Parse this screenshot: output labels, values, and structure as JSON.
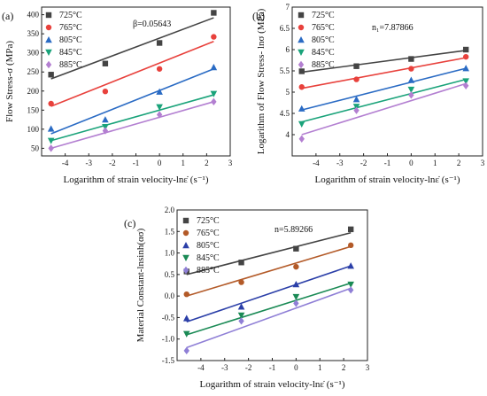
{
  "chart_data": [
    {
      "type": "scatter",
      "panel_label": "(a)",
      "xlabel": "Logarithm of strain velocity-lnε̇ (s⁻¹)",
      "ylabel": "Flow Stress-σ (MPa)",
      "annotation": "β=0.05643",
      "xlim": [
        -5,
        3
      ],
      "ylim": [
        30,
        420
      ],
      "xticks": [
        -4,
        -3,
        -2,
        -1,
        0,
        1,
        2,
        3
      ],
      "yticks": [
        50,
        100,
        150,
        200,
        250,
        300,
        350,
        400
      ],
      "legend_position": "top-left",
      "series": [
        {
          "name": "725°C",
          "color": "#444444",
          "marker": "square",
          "x": [
            -4.6,
            -2.3,
            0,
            2.3
          ],
          "y": [
            243,
            272,
            326,
            405
          ],
          "fit": [
            [
              -4.6,
              232
            ],
            [
              2.3,
              392
            ]
          ]
        },
        {
          "name": "765°C",
          "color": "#e8413c",
          "marker": "circle",
          "x": [
            -4.6,
            -2.3,
            0,
            2.3
          ],
          "y": [
            167,
            199,
            258,
            342
          ],
          "fit": [
            [
              -4.6,
              160
            ],
            [
              2.3,
              330
            ]
          ]
        },
        {
          "name": "805°C",
          "color": "#2a6bc4",
          "marker": "triangle-up",
          "x": [
            -4.6,
            -2.3,
            0,
            2.3
          ],
          "y": [
            101,
            125,
            198,
            262
          ],
          "fit": [
            [
              -4.6,
              88
            ],
            [
              2.3,
              258
            ]
          ]
        },
        {
          "name": "845°C",
          "color": "#1aa37a",
          "marker": "triangle-down",
          "x": [
            -4.6,
            -2.3,
            0,
            2.3
          ],
          "y": [
            70,
            106,
            158,
            193
          ],
          "fit": [
            [
              -4.6,
              70
            ],
            [
              2.3,
              190
            ]
          ]
        },
        {
          "name": "885°C",
          "color": "#b37fd1",
          "marker": "diamond",
          "x": [
            -4.6,
            -2.3,
            0,
            2.3
          ],
          "y": [
            50,
            96,
            138,
            172
          ],
          "fit": [
            [
              -4.6,
              50
            ],
            [
              2.3,
              172
            ]
          ]
        }
      ]
    },
    {
      "type": "scatter",
      "panel_label": "(b)",
      "xlabel": "Logarithm of strain velocity-lnε̇ (s⁻¹)",
      "ylabel": "Logarithm of Flow Stress- lnσ (MPa)",
      "annotation": "n₁=7.87866",
      "xlim": [
        -5,
        3
      ],
      "ylim": [
        3.5,
        7.0
      ],
      "xticks": [
        -4,
        -3,
        -2,
        -1,
        0,
        1,
        2,
        3
      ],
      "yticks": [
        4.0,
        4.5,
        5.0,
        5.5,
        6.0,
        6.5,
        7.0
      ],
      "legend_position": "top-left",
      "series": [
        {
          "name": "725°C",
          "color": "#444444",
          "marker": "square",
          "x": [
            -4.6,
            -2.3,
            0,
            2.3
          ],
          "y": [
            5.49,
            5.61,
            5.78,
            6.0
          ],
          "fit": [
            [
              -4.6,
              5.47
            ],
            [
              2.3,
              5.98
            ]
          ]
        },
        {
          "name": "765°C",
          "color": "#e8413c",
          "marker": "circle",
          "x": [
            -4.6,
            -2.3,
            0,
            2.3
          ],
          "y": [
            5.12,
            5.3,
            5.55,
            5.83
          ],
          "fit": [
            [
              -4.6,
              5.09
            ],
            [
              2.3,
              5.81
            ]
          ]
        },
        {
          "name": "805°C",
          "color": "#2a6bc4",
          "marker": "triangle-up",
          "x": [
            -4.6,
            -2.3,
            0,
            2.3
          ],
          "y": [
            4.61,
            4.83,
            5.28,
            5.56
          ],
          "fit": [
            [
              -4.6,
              4.58
            ],
            [
              2.3,
              5.56
            ]
          ]
        },
        {
          "name": "845°C",
          "color": "#1aa37a",
          "marker": "triangle-down",
          "x": [
            -4.6,
            -2.3,
            0,
            2.3
          ],
          "y": [
            4.25,
            4.66,
            5.06,
            5.26
          ],
          "fit": [
            [
              -4.6,
              4.3
            ],
            [
              2.3,
              5.3
            ]
          ]
        },
        {
          "name": "885°C",
          "color": "#b37fd1",
          "marker": "diamond",
          "x": [
            -4.6,
            -2.3,
            0,
            2.3
          ],
          "y": [
            3.9,
            4.57,
            4.93,
            5.15
          ],
          "fit": [
            [
              -4.6,
              4.0
            ],
            [
              2.3,
              5.2
            ]
          ]
        }
      ]
    },
    {
      "type": "scatter",
      "panel_label": "(c)",
      "xlabel": "Logarithm of strain velocity-lnε̇ (s⁻¹)",
      "ylabel": "Material Constant-lnsinh(ασ)",
      "annotation": "n=5.89266",
      "xlim": [
        -5,
        3
      ],
      "ylim": [
        -1.5,
        2.0
      ],
      "xticks": [
        -4,
        -3,
        -2,
        -1,
        0,
        1,
        2,
        3
      ],
      "yticks": [
        -1.5,
        -1.0,
        -0.5,
        0.0,
        0.5,
        1.0,
        1.5,
        2.0
      ],
      "ytick_labels": [
        "-1.5",
        "-1.0",
        "-0.5",
        "0.0",
        "0.5",
        "1.0",
        "1.5",
        "2.0"
      ],
      "legend_position": "top-left",
      "series": [
        {
          "name": "725°C",
          "color": "#444444",
          "marker": "square",
          "x": [
            -4.6,
            -2.3,
            0,
            2.3
          ],
          "y": [
            0.57,
            0.78,
            1.1,
            1.55
          ],
          "fit": [
            [
              -4.6,
              0.5
            ],
            [
              2.3,
              1.47
            ]
          ]
        },
        {
          "name": "765°C",
          "color": "#b35a28",
          "marker": "circle",
          "x": [
            -4.6,
            -2.3,
            0,
            2.3
          ],
          "y": [
            0.04,
            0.32,
            0.68,
            1.18
          ],
          "fit": [
            [
              -4.6,
              0.0
            ],
            [
              2.3,
              1.15
            ]
          ]
        },
        {
          "name": "805°C",
          "color": "#2b3fa8",
          "marker": "triangle-up",
          "x": [
            -4.6,
            -2.3,
            0,
            2.3
          ],
          "y": [
            -0.52,
            -0.25,
            0.27,
            0.7
          ],
          "fit": [
            [
              -4.6,
              -0.6
            ],
            [
              2.3,
              0.7
            ]
          ]
        },
        {
          "name": "845°C",
          "color": "#1a8a55",
          "marker": "triangle-down",
          "x": [
            -4.6,
            -2.3,
            0,
            2.3
          ],
          "y": [
            -0.88,
            -0.45,
            -0.02,
            0.27
          ],
          "fit": [
            [
              -4.6,
              -0.9
            ],
            [
              2.3,
              0.3
            ]
          ]
        },
        {
          "name": "885°C",
          "color": "#8f7fd6",
          "marker": "diamond",
          "x": [
            -4.6,
            -2.3,
            0,
            2.3
          ],
          "y": [
            -1.27,
            -0.58,
            -0.17,
            0.14
          ],
          "fit": [
            [
              -4.6,
              -1.2
            ],
            [
              2.3,
              0.18
            ]
          ]
        }
      ]
    }
  ]
}
